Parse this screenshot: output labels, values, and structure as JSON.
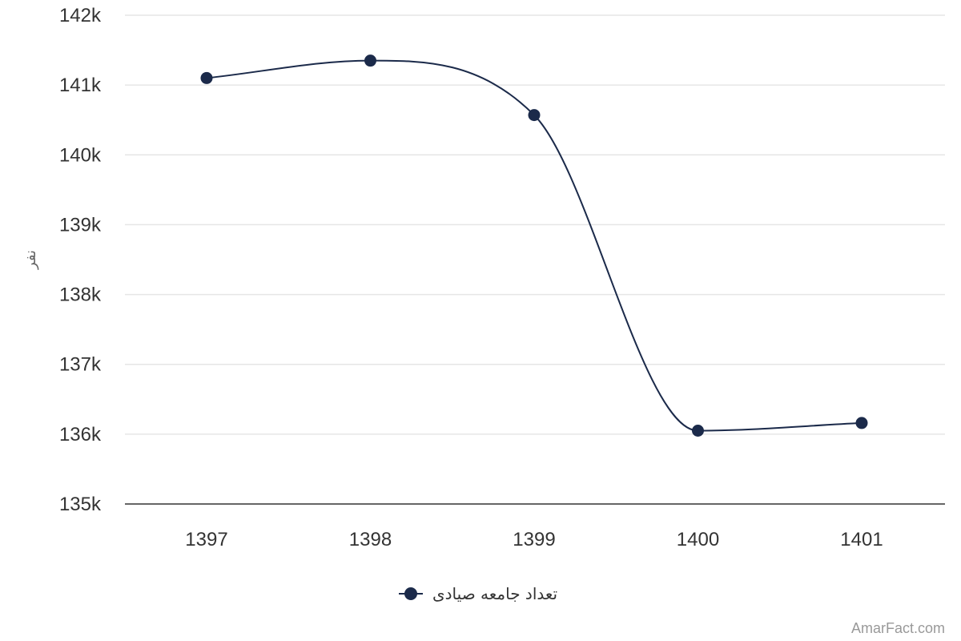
{
  "chart_data": {
    "type": "line",
    "categories": [
      "1397",
      "1398",
      "1399",
      "1400",
      "1401"
    ],
    "series": [
      {
        "name": "تعداد جامعه صیادی",
        "values": [
          141100,
          141350,
          140570,
          136050,
          136160
        ]
      }
    ],
    "ylabel": "نفر",
    "ylim": [
      135000,
      142000
    ],
    "yticks": [
      135000,
      136000,
      137000,
      138000,
      139000,
      140000,
      141000,
      142000
    ],
    "ytick_labels": [
      "135k",
      "136k",
      "137k",
      "138k",
      "139k",
      "140k",
      "141k",
      "142k"
    ],
    "grid": true,
    "legend_position": "bottom-center",
    "colors": {
      "series": "#1b2a4a",
      "grid": "#e6e6e6",
      "axis": "#333333"
    }
  },
  "credit": "AmarFact.com"
}
